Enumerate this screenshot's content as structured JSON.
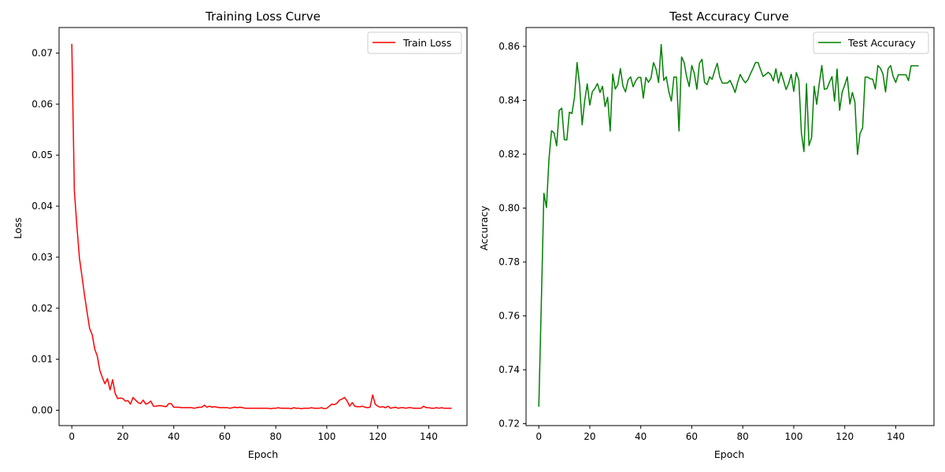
{
  "figure": {
    "panels": [
      {
        "title": "Training Loss Curve",
        "xlabel": "Epoch",
        "ylabel": "Loss",
        "legend_label": "Train Loss"
      },
      {
        "title": "Test Accuracy Curve",
        "xlabel": "Epoch",
        "ylabel": "Accuracy",
        "legend_label": "Test Accuracy"
      }
    ]
  },
  "chart_data": [
    {
      "type": "line",
      "title": "Training Loss Curve",
      "xlabel": "Epoch",
      "ylabel": "Loss",
      "xlim": [
        -5,
        155
      ],
      "ylim": [
        -0.003,
        0.075
      ],
      "xticks": [
        0,
        20,
        40,
        60,
        80,
        100,
        120,
        140
      ],
      "yticks": [
        0.0,
        0.01,
        0.02,
        0.03,
        0.04,
        0.05,
        0.06,
        0.07
      ],
      "ytick_labels": [
        "0.00",
        "0.01",
        "0.02",
        "0.03",
        "0.04",
        "0.05",
        "0.06",
        "0.07"
      ],
      "legend": "top-right",
      "grid": false,
      "color": "#ff0000",
      "series": [
        {
          "name": "Train Loss",
          "x_start": 0,
          "x_step": 1,
          "values": [
            0.0718,
            0.043,
            0.036,
            0.0298,
            0.0262,
            0.0225,
            0.0192,
            0.016,
            0.0148,
            0.012,
            0.0106,
            0.0078,
            0.0064,
            0.0052,
            0.0062,
            0.004,
            0.006,
            0.0033,
            0.0023,
            0.0024,
            0.0023,
            0.0018,
            0.0019,
            0.0012,
            0.0025,
            0.002,
            0.0015,
            0.0013,
            0.002,
            0.0012,
            0.0014,
            0.0018,
            0.0008,
            0.0008,
            0.0009,
            0.0009,
            0.0008,
            0.0007,
            0.0013,
            0.0013,
            0.0006,
            0.0006,
            0.0006,
            0.0005,
            0.0005,
            0.0005,
            0.0005,
            0.0005,
            0.0004,
            0.0005,
            0.0006,
            0.0006,
            0.001,
            0.0006,
            0.0008,
            0.0006,
            0.0007,
            0.0006,
            0.0005,
            0.0005,
            0.0005,
            0.0005,
            0.0004,
            0.0005,
            0.0006,
            0.0005,
            0.0006,
            0.0005,
            0.0004,
            0.0004,
            0.0004,
            0.0004,
            0.0004,
            0.0004,
            0.0004,
            0.0004,
            0.0004,
            0.0004,
            0.0003,
            0.0004,
            0.0004,
            0.0005,
            0.0004,
            0.0004,
            0.0004,
            0.0004,
            0.0003,
            0.0005,
            0.0004,
            0.0004,
            0.0003,
            0.0004,
            0.0004,
            0.0004,
            0.0005,
            0.0004,
            0.0004,
            0.0004,
            0.0005,
            0.0003,
            0.0004,
            0.0008,
            0.0012,
            0.0011,
            0.0014,
            0.002,
            0.0022,
            0.0025,
            0.0018,
            0.0008,
            0.0015,
            0.0008,
            0.0007,
            0.0007,
            0.0008,
            0.0006,
            0.0005,
            0.0006,
            0.003,
            0.0012,
            0.0008,
            0.0006,
            0.0007,
            0.0005,
            0.0008,
            0.0004,
            0.0005,
            0.0006,
            0.0004,
            0.0005,
            0.0005,
            0.0004,
            0.0005,
            0.0005,
            0.0004,
            0.0004,
            0.0004,
            0.0004,
            0.0008,
            0.0005,
            0.0005,
            0.0004,
            0.0004,
            0.0005,
            0.0004,
            0.0005,
            0.0004,
            0.0004,
            0.0004,
            0.0004
          ]
        }
      ]
    },
    {
      "type": "line",
      "title": "Test Accuracy Curve",
      "xlabel": "Epoch",
      "ylabel": "Accuracy",
      "xlim": [
        -5,
        155
      ],
      "ylim": [
        0.7193,
        0.867
      ],
      "xticks": [
        0,
        20,
        40,
        60,
        80,
        100,
        120,
        140
      ],
      "yticks": [
        0.72,
        0.74,
        0.76,
        0.78,
        0.8,
        0.82,
        0.84,
        0.86
      ],
      "ytick_labels": [
        "0.72",
        "0.74",
        "0.76",
        "0.78",
        "0.80",
        "0.82",
        "0.84",
        "0.86"
      ],
      "legend": "top-right",
      "grid": false,
      "color": "#008000",
      "series": [
        {
          "name": "Test Accuracy",
          "x_start": 0,
          "x_step": 1,
          "values": [
            0.7263,
            0.765,
            0.8055,
            0.8002,
            0.8183,
            0.8287,
            0.8279,
            0.8231,
            0.8362,
            0.8371,
            0.8254,
            0.8253,
            0.8356,
            0.8351,
            0.8411,
            0.854,
            0.8458,
            0.8309,
            0.8398,
            0.8461,
            0.8382,
            0.8432,
            0.8444,
            0.8462,
            0.8429,
            0.8452,
            0.8377,
            0.8411,
            0.8286,
            0.8497,
            0.8442,
            0.8458,
            0.8518,
            0.8453,
            0.8431,
            0.8475,
            0.8487,
            0.845,
            0.8472,
            0.8485,
            0.8485,
            0.8408,
            0.8485,
            0.8467,
            0.8482,
            0.854,
            0.8515,
            0.8466,
            0.8607,
            0.8474,
            0.8487,
            0.8432,
            0.8397,
            0.8486,
            0.8486,
            0.8286,
            0.8561,
            0.854,
            0.8487,
            0.8451,
            0.8529,
            0.85,
            0.8441,
            0.8537,
            0.8552,
            0.8467,
            0.8458,
            0.8487,
            0.8478,
            0.851,
            0.8537,
            0.8486,
            0.8464,
            0.8464,
            0.8464,
            0.8474,
            0.8454,
            0.8429,
            0.8467,
            0.8496,
            0.8478,
            0.8465,
            0.8476,
            0.8498,
            0.8518,
            0.854,
            0.854,
            0.8513,
            0.8488,
            0.8496,
            0.8504,
            0.8495,
            0.8472,
            0.8517,
            0.8464,
            0.8504,
            0.8473,
            0.844,
            0.8462,
            0.8496,
            0.8433,
            0.8503,
            0.8475,
            0.8279,
            0.821,
            0.8462,
            0.8232,
            0.8262,
            0.8452,
            0.8385,
            0.8462,
            0.8529,
            0.8441,
            0.8443,
            0.8467,
            0.8488,
            0.8397,
            0.8516,
            0.8363,
            0.8431,
            0.8457,
            0.8487,
            0.8386,
            0.8429,
            0.8393,
            0.8199,
            0.8277,
            0.8297,
            0.8486,
            0.8486,
            0.848,
            0.8478,
            0.8442,
            0.8529,
            0.8519,
            0.8497,
            0.8431,
            0.8517,
            0.8529,
            0.8488,
            0.8466,
            0.8495,
            0.8495,
            0.8495,
            0.8495,
            0.8473,
            0.8528,
            0.8528,
            0.8528,
            0.8528
          ]
        }
      ]
    }
  ]
}
